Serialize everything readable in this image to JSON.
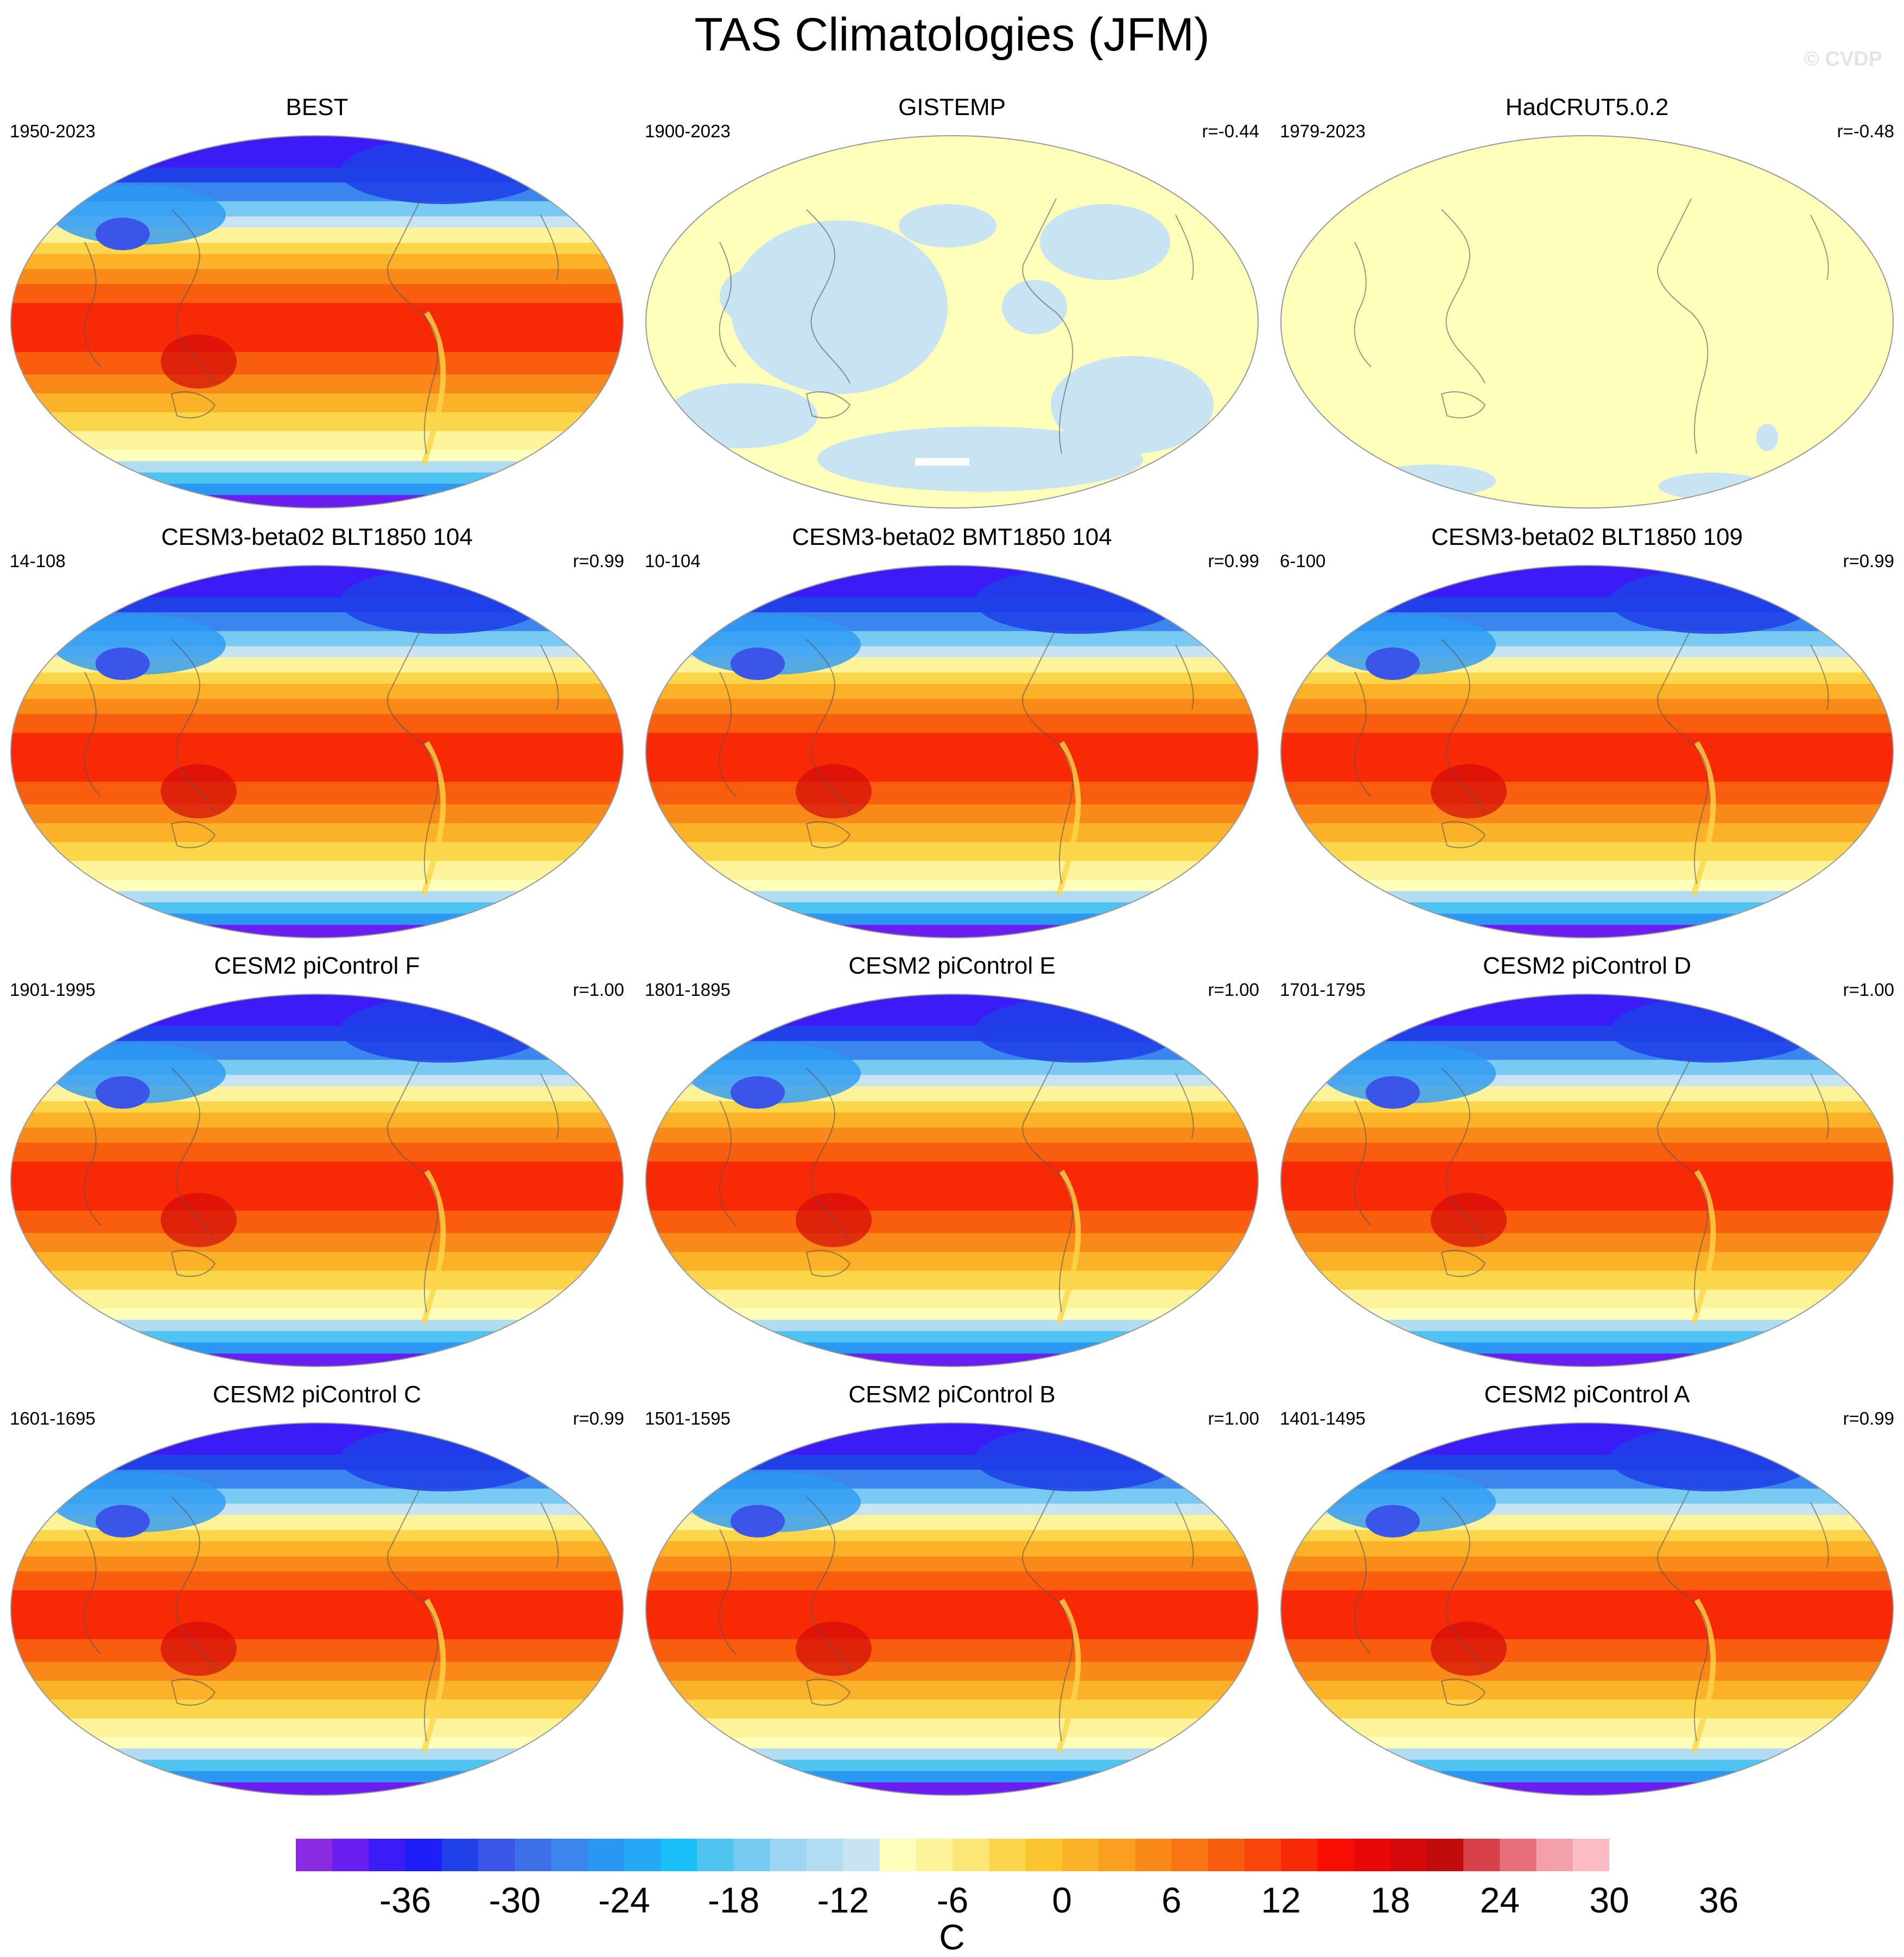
{
  "figure": {
    "title": "TAS Climatologies (JFM)",
    "watermark": "© CVDP"
  },
  "map_data": {
    "type": "filled-contour",
    "variable": "TAS",
    "season": "JFM",
    "units": "C",
    "projection": "robinson-like, Pacific-centered",
    "panels": [
      {
        "title": "BEST",
        "period": "1950-2023",
        "corr": "",
        "style": "full"
      },
      {
        "title": "GISTEMP",
        "period": "1900-2023",
        "corr": "r=-0.44",
        "style": "gistemp"
      },
      {
        "title": "HadCRUT5.0.2",
        "period": "1979-2023",
        "corr": "r=-0.48",
        "style": "hadcrut"
      },
      {
        "title": "CESM3-beta02 BLT1850 104",
        "period": "14-108",
        "corr": "r=0.99",
        "style": "full"
      },
      {
        "title": "CESM3-beta02 BMT1850 104",
        "period": "10-104",
        "corr": "r=0.99",
        "style": "full"
      },
      {
        "title": "CESM3-beta02 BLT1850 109",
        "period": "6-100",
        "corr": "r=0.99",
        "style": "full"
      },
      {
        "title": "CESM2 piControl F",
        "period": "1901-1995",
        "corr": "r=1.00",
        "style": "full"
      },
      {
        "title": "CESM2 piControl E",
        "period": "1801-1895",
        "corr": "r=1.00",
        "style": "full"
      },
      {
        "title": "CESM2 piControl D",
        "period": "1701-1795",
        "corr": "r=1.00",
        "style": "full"
      },
      {
        "title": "CESM2 piControl C",
        "period": "1601-1695",
        "corr": "r=0.99",
        "style": "full"
      },
      {
        "title": "CESM2 piControl B",
        "period": "1501-1595",
        "corr": "r=1.00",
        "style": "full"
      },
      {
        "title": "CESM2 piControl A",
        "period": "1401-1495",
        "corr": "r=0.99",
        "style": "full"
      }
    ],
    "colorbar": {
      "label_values": [
        "-36",
        "-30",
        "-24",
        "-18",
        "-12",
        "-6",
        "0",
        "6",
        "12",
        "18",
        "24",
        "30",
        "36"
      ],
      "units_label": "C",
      "colors": [
        "#8a2be2",
        "#6a1ff0",
        "#3b1cf6",
        "#1e1ef8",
        "#2040e8",
        "#3a55e8",
        "#3d6fe8",
        "#3a86ee",
        "#2a98f2",
        "#25a8f6",
        "#18bff8",
        "#50c4f0",
        "#78caf2",
        "#9cd4f2",
        "#b2dcf2",
        "#c8e4f2",
        "#ffffbc",
        "#fdf39a",
        "#fce676",
        "#fbd64a",
        "#fbc530",
        "#fbb128",
        "#fa9f20",
        "#f98a1a",
        "#f97414",
        "#f85e0e",
        "#f8460a",
        "#f82a06",
        "#f80e04",
        "#e80808",
        "#d40a0a",
        "#c00c0c",
        "#d8404a",
        "#e8707a",
        "#f4a0aa",
        "#fcbcc4"
      ]
    }
  }
}
